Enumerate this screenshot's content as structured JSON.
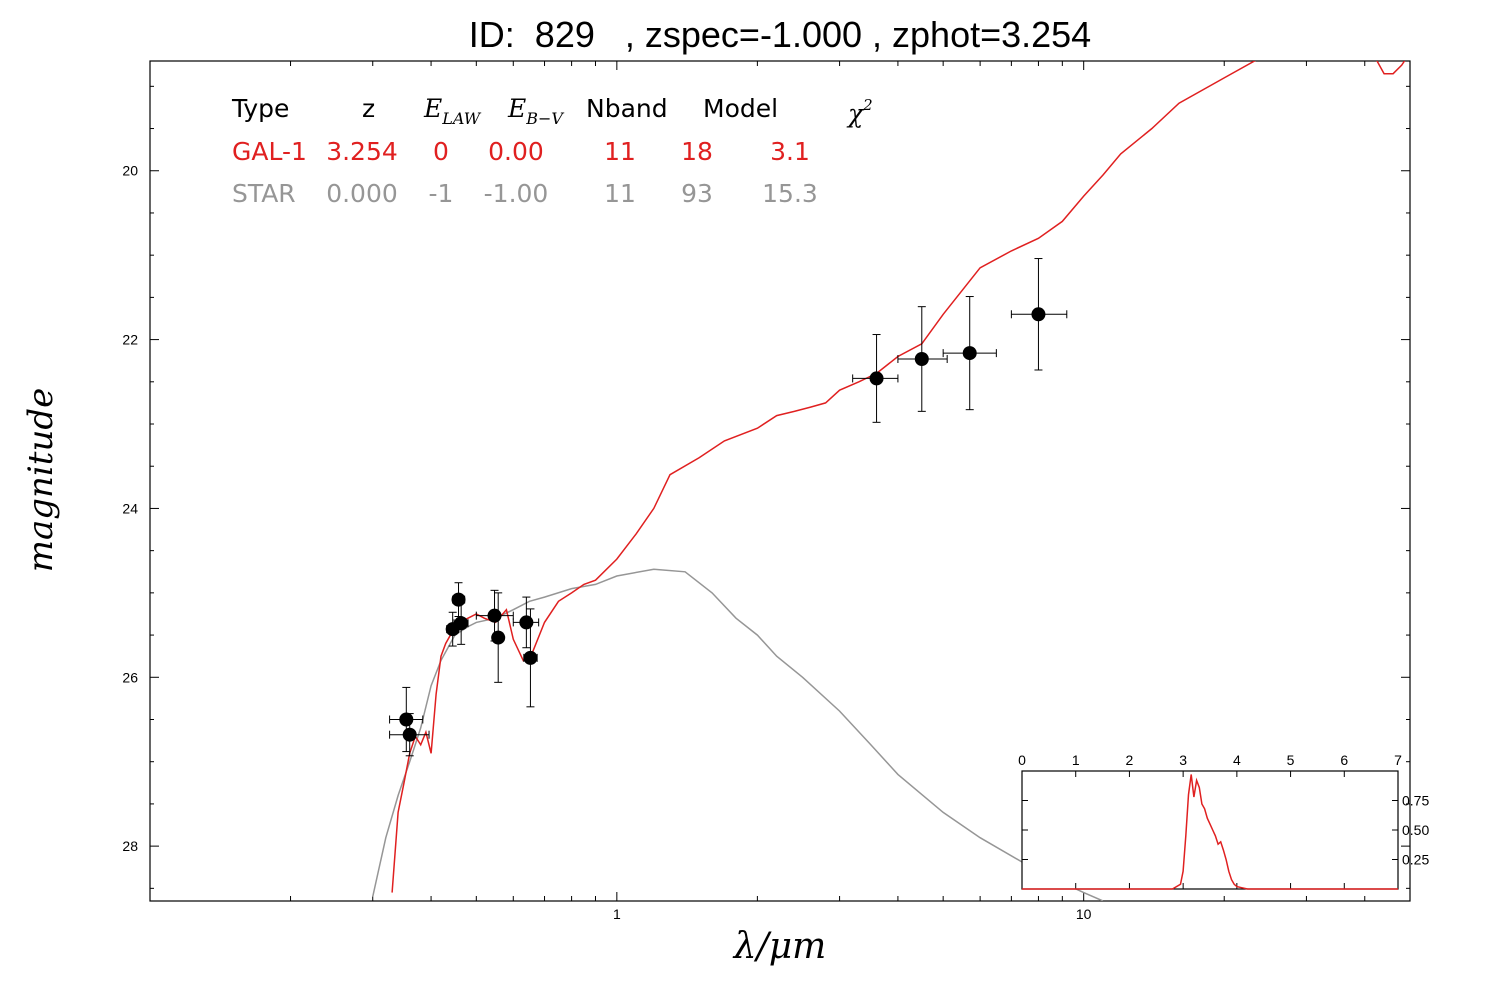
{
  "title": "ID:  829   , zspec=-1.000 , zphot=3.254",
  "colors": {
    "galaxy": "#e02020",
    "star": "#969696",
    "points": "#000000"
  },
  "table": {
    "headers": {
      "type": "Type",
      "z": "z",
      "elaw_main": "E",
      "elaw_sub": "LAW",
      "ebv_main": "E",
      "ebv_sub": "B−V",
      "nband": "Nband",
      "model": "Model",
      "chi_main": "χ",
      "chi_sup": "2"
    },
    "rows": [
      {
        "type": "GAL-1",
        "z": "3.254",
        "elaw": "0",
        "ebv": "0.00",
        "nband": "11",
        "model": "18",
        "chi2": "3.1",
        "color": "#e02020"
      },
      {
        "type": "STAR",
        "z": "0.000",
        "elaw": "-1",
        "ebv": "-1.00",
        "nband": "11",
        "model": "93",
        "chi2": "15.3",
        "color": "#969696"
      }
    ]
  },
  "chart_data": [
    {
      "type": "scatter",
      "xlabel": "λ/μm",
      "ylabel": "magnitude",
      "x_scale": "log",
      "xlim": [
        0.1,
        50
      ],
      "ylim": [
        28.65,
        18.7
      ],
      "x_tick_labels": [
        "1",
        "10"
      ],
      "y_tick_labels": [
        "20",
        "22",
        "24",
        "26",
        "28"
      ],
      "grid": false,
      "photometry": [
        {
          "x": 0.354,
          "y": 26.5,
          "xerr": [
            0.326,
            0.384
          ],
          "yerr": 0.38
        },
        {
          "x": 0.36,
          "y": 26.68,
          "xerr": [
            0.326,
            0.396
          ],
          "yerr": 0.25
        },
        {
          "x": 0.445,
          "y": 25.43,
          "xerr": [
            0.432,
            0.458
          ],
          "yerr": 0.2
        },
        {
          "x": 0.458,
          "y": 25.08,
          "xerr": [
            0.445,
            0.472
          ],
          "yerr": 0.2
        },
        {
          "x": 0.464,
          "y": 25.36,
          "xerr": [
            0.448,
            0.48
          ],
          "yerr": 0.25
        },
        {
          "x": 0.547,
          "y": 25.27,
          "xerr": [
            0.5,
            0.6
          ],
          "yerr": 0.3
        },
        {
          "x": 0.557,
          "y": 25.53,
          "xerr": [
            0.545,
            0.57
          ],
          "yerr": 0.53
        },
        {
          "x": 0.64,
          "y": 25.35,
          "xerr": [
            0.6,
            0.68
          ],
          "yerr": 0.3
        },
        {
          "x": 0.653,
          "y": 25.77,
          "xerr": [
            0.632,
            0.675
          ],
          "yerr": 0.58
        },
        {
          "x": 3.6,
          "y": 22.46,
          "xerr": [
            3.2,
            4.0
          ],
          "yerr": 0.52
        },
        {
          "x": 4.5,
          "y": 22.23,
          "xerr": [
            4.0,
            5.1
          ],
          "yerr": 0.62
        },
        {
          "x": 5.7,
          "y": 22.16,
          "xerr": [
            5.0,
            6.5
          ],
          "yerr": 0.67
        },
        {
          "x": 8.0,
          "y": 21.7,
          "xerr": [
            7.0,
            9.2
          ],
          "yerr": 0.66
        }
      ],
      "series": [
        {
          "name": "GAL-1",
          "type": "line",
          "x": [
            0.33,
            0.34,
            0.35,
            0.36,
            0.37,
            0.38,
            0.39,
            0.4,
            0.41,
            0.42,
            0.43,
            0.44,
            0.45,
            0.46,
            0.48,
            0.5,
            0.52,
            0.55,
            0.58,
            0.6,
            0.63,
            0.66,
            0.7,
            0.75,
            0.8,
            0.85,
            0.9,
            1.0,
            1.1,
            1.2,
            1.3,
            1.5,
            1.7,
            2.0,
            2.2,
            2.4,
            2.6,
            2.8,
            3.0,
            3.3,
            3.6,
            4.0,
            4.5,
            5.0,
            6.0,
            7.0,
            8.0,
            9.0,
            10.0,
            11.0,
            12.0,
            14.0,
            16.0,
            20.0,
            25.0,
            30.0,
            36.0,
            38.0,
            40.0,
            42.0,
            44.0,
            46.0,
            48.0,
            50.0
          ],
          "y": [
            28.55,
            27.6,
            27.25,
            26.9,
            26.7,
            26.8,
            26.65,
            26.9,
            26.2,
            25.75,
            25.6,
            25.5,
            25.4,
            25.35,
            25.3,
            25.25,
            25.3,
            25.35,
            25.2,
            25.55,
            25.8,
            25.7,
            25.35,
            25.1,
            25.0,
            24.9,
            24.85,
            24.6,
            24.3,
            24.0,
            23.6,
            23.4,
            23.2,
            23.05,
            22.9,
            22.85,
            22.8,
            22.75,
            22.6,
            22.5,
            22.4,
            22.2,
            22.05,
            21.7,
            21.15,
            20.95,
            20.8,
            20.6,
            20.3,
            20.05,
            19.8,
            19.5,
            19.2,
            18.9,
            18.6,
            18.35,
            18.2,
            18.15,
            18.2,
            18.65,
            18.85,
            18.85,
            18.75,
            18.6
          ]
        },
        {
          "name": "STAR",
          "type": "line",
          "x": [
            0.3,
            0.32,
            0.34,
            0.36,
            0.38,
            0.4,
            0.42,
            0.45,
            0.48,
            0.5,
            0.55,
            0.6,
            0.65,
            0.7,
            0.8,
            0.9,
            1.0,
            1.2,
            1.4,
            1.6,
            1.8,
            2.0,
            2.2,
            2.5,
            3.0,
            3.5,
            4.0,
            5.0,
            6.0,
            8.0,
            10.0,
            11.0
          ],
          "y": [
            28.6,
            27.9,
            27.4,
            27.0,
            26.6,
            26.1,
            25.8,
            25.5,
            25.4,
            25.35,
            25.3,
            25.2,
            25.1,
            25.05,
            24.95,
            24.9,
            24.8,
            24.72,
            24.75,
            25.0,
            25.3,
            25.5,
            25.75,
            26.0,
            26.4,
            26.8,
            27.15,
            27.6,
            27.9,
            28.3,
            28.55,
            28.65
          ]
        }
      ]
    },
    {
      "type": "line",
      "title": "",
      "xlim": [
        0,
        7
      ],
      "ylim": [
        0,
        1.0
      ],
      "x_tick_labels": [
        "0",
        "1",
        "2",
        "3",
        "4",
        "5",
        "6",
        "7"
      ],
      "y_tick_labels": [
        "0.25",
        "0.50",
        "0.75"
      ],
      "series": [
        {
          "name": "",
          "x": [
            0,
            2.8,
            2.95,
            3.0,
            3.05,
            3.1,
            3.15,
            3.2,
            3.25,
            3.3,
            3.35,
            3.4,
            3.45,
            3.5,
            3.55,
            3.6,
            3.65,
            3.7,
            3.75,
            3.8,
            3.85,
            3.9,
            3.95,
            4.0,
            4.1,
            4.2,
            7.0
          ],
          "y": [
            0.0,
            0.0,
            0.04,
            0.15,
            0.45,
            0.8,
            0.97,
            0.78,
            0.92,
            0.86,
            0.72,
            0.68,
            0.6,
            0.55,
            0.5,
            0.45,
            0.38,
            0.4,
            0.33,
            0.25,
            0.15,
            0.08,
            0.04,
            0.02,
            0.01,
            0.0,
            0.0
          ]
        }
      ]
    }
  ]
}
